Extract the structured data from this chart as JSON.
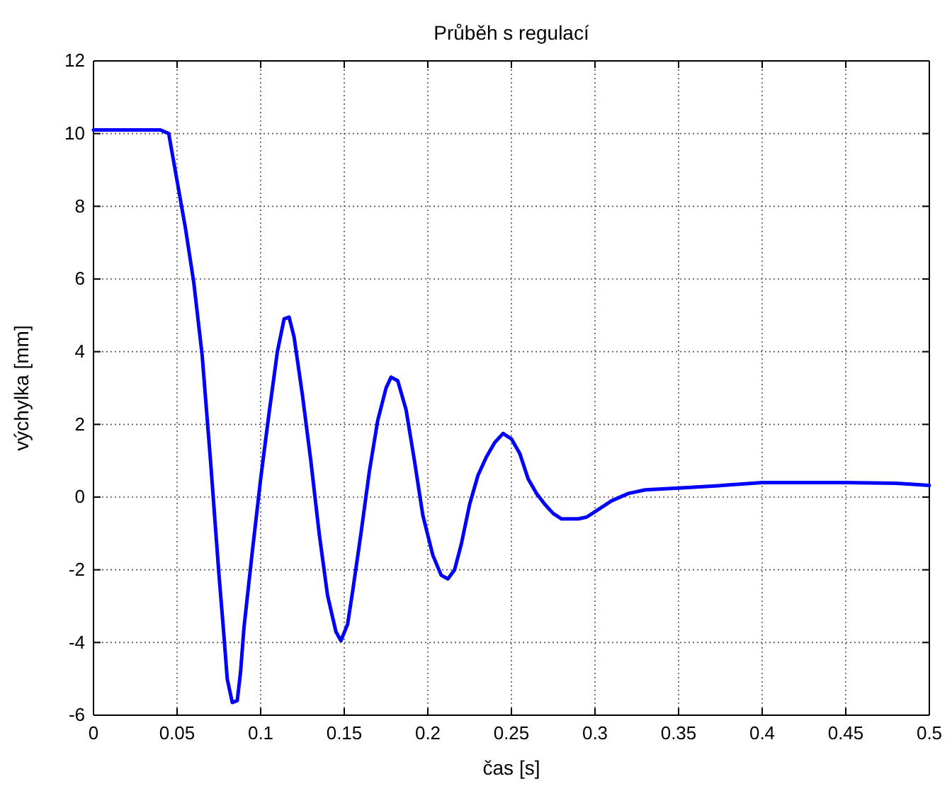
{
  "chart_data": {
    "type": "line",
    "title": "Průběh s regulací",
    "xlabel": "čas [s]",
    "ylabel": "výchylka [mm]",
    "xlim": [
      0,
      0.5
    ],
    "xticks": [
      0,
      0.05,
      0.1,
      0.15,
      0.2,
      0.25,
      0.3,
      0.35,
      0.4,
      0.45,
      0.5
    ],
    "ylim": [
      -6,
      12
    ],
    "yticks": [
      -6,
      -4,
      -2,
      0,
      2,
      4,
      6,
      8,
      10,
      12
    ],
    "grid": true,
    "marker": "none",
    "line_style": "solid",
    "x": [
      0,
      0.01,
      0.02,
      0.03,
      0.04,
      0.045,
      0.05,
      0.055,
      0.06,
      0.065,
      0.07,
      0.075,
      0.078,
      0.08,
      0.083,
      0.086,
      0.088,
      0.09,
      0.095,
      0.1,
      0.105,
      0.11,
      0.114,
      0.117,
      0.12,
      0.125,
      0.13,
      0.135,
      0.14,
      0.145,
      0.148,
      0.152,
      0.155,
      0.16,
      0.165,
      0.17,
      0.175,
      0.178,
      0.182,
      0.187,
      0.192,
      0.197,
      0.203,
      0.208,
      0.212,
      0.216,
      0.22,
      0.225,
      0.23,
      0.235,
      0.24,
      0.245,
      0.25,
      0.255,
      0.26,
      0.265,
      0.27,
      0.275,
      0.28,
      0.29,
      0.295,
      0.3,
      0.31,
      0.32,
      0.33,
      0.35,
      0.37,
      0.4,
      0.42,
      0.45,
      0.48,
      0.5
    ],
    "series": [
      {
        "color": "#0000ff",
        "values": [
          10.1,
          10.1,
          10.1,
          10.1,
          10.1,
          10.0,
          8.7,
          7.4,
          5.9,
          3.9,
          1.0,
          -2.1,
          -3.8,
          -5.0,
          -5.65,
          -5.6,
          -4.8,
          -3.6,
          -1.5,
          0.5,
          2.3,
          4.0,
          4.9,
          4.95,
          4.4,
          2.8,
          1.0,
          -1.0,
          -2.7,
          -3.7,
          -3.95,
          -3.5,
          -2.6,
          -1.0,
          0.7,
          2.1,
          3.0,
          3.3,
          3.2,
          2.4,
          1.0,
          -0.5,
          -1.6,
          -2.15,
          -2.25,
          -2.0,
          -1.3,
          -0.2,
          0.6,
          1.1,
          1.5,
          1.75,
          1.6,
          1.2,
          0.5,
          0.1,
          -0.2,
          -0.45,
          -0.6,
          -0.6,
          -0.55,
          -0.4,
          -0.1,
          0.1,
          0.2,
          0.25,
          0.3,
          0.4,
          0.4,
          0.4,
          0.38,
          0.32
        ]
      }
    ]
  }
}
